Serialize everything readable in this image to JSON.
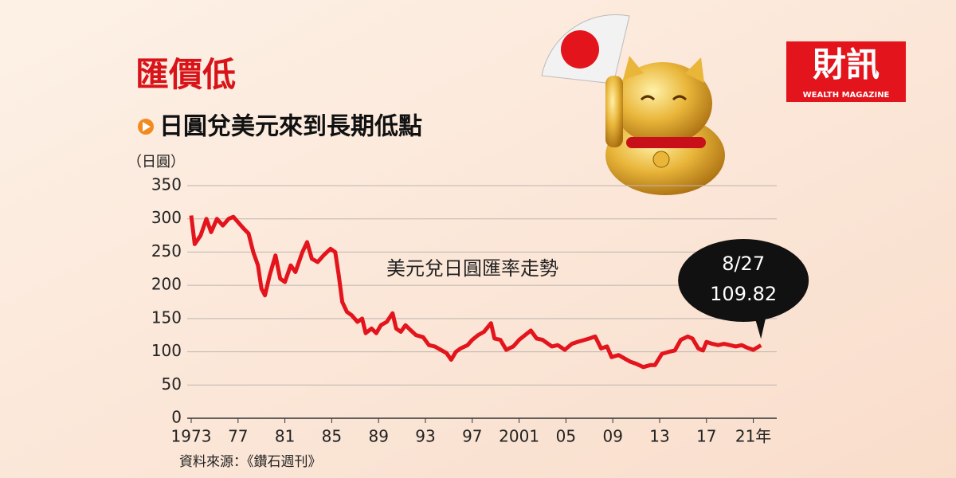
{
  "chart_data": {
    "type": "line",
    "title": "匯價低",
    "subtitle": "日圓兌美元來到長期低點",
    "y_label": "（日圓）",
    "series_label": "美元兌日圓匯率走勢",
    "source": "資料來源：《鑽石週刊》",
    "annotation": "8/27",
    "logo": {
      "text": "財訊",
      "subtitle": "WEALTH MAGAZINE"
    },
    "x": [
      1973.0,
      1973.3,
      1973.8,
      1974.3,
      1974.7,
      1975.2,
      1975.7,
      1976.2,
      1976.6,
      1977.0,
      1977.5,
      1977.9,
      1978.3,
      1978.7,
      1979.0,
      1979.3,
      1979.7,
      1980.2,
      1980.6,
      1981.0,
      1981.5,
      1981.9,
      1982.5,
      1982.9,
      1983.3,
      1983.8,
      1984.3,
      1984.9,
      1985.3,
      1985.6,
      1985.9,
      1986.3,
      1986.7,
      1987.2,
      1987.6,
      1987.9,
      1988.4,
      1988.8,
      1989.2,
      1989.7,
      1990.2,
      1990.5,
      1990.9,
      1991.3,
      1991.7,
      1992.2,
      1992.8,
      1993.3,
      1993.8,
      1994.3,
      1994.8,
      1995.2,
      1995.6,
      1996.0,
      1996.6,
      1997.0,
      1997.5,
      1998.0,
      1998.6,
      1998.9,
      1999.4,
      1999.9,
      2000.5,
      2001.0,
      2001.5,
      2002.0,
      2002.5,
      2003.0,
      2003.8,
      2004.3,
      2004.9,
      2005.5,
      2006.0,
      2006.6,
      2007.0,
      2007.5,
      2008.0,
      2008.5,
      2008.9,
      2009.5,
      2010.0,
      2010.5,
      2011.0,
      2011.6,
      2012.2,
      2012.6,
      2013.2,
      2013.8,
      2014.3,
      2014.8,
      2015.4,
      2015.8,
      2016.3,
      2016.7,
      2017.0,
      2017.5,
      2018.0,
      2018.5,
      2019.0,
      2019.5,
      2020.0,
      2020.5,
      2021.0,
      2021.65
    ],
    "series": [
      {
        "color": "#e3141c",
        "values": [
          305,
          262,
          275,
          300,
          280,
          300,
          290,
          300,
          303,
          295,
          285,
          278,
          250,
          230,
          195,
          185,
          215,
          245,
          210,
          205,
          230,
          220,
          250,
          265,
          240,
          235,
          245,
          255,
          250,
          215,
          175,
          160,
          155,
          145,
          150,
          128,
          135,
          128,
          140,
          145,
          158,
          135,
          130,
          140,
          133,
          125,
          122,
          110,
          108,
          103,
          98,
          88,
          100,
          105,
          110,
          118,
          125,
          130,
          143,
          120,
          118,
          103,
          108,
          118,
          125,
          132,
          120,
          118,
          108,
          110,
          103,
          112,
          115,
          118,
          120,
          123,
          105,
          108,
          92,
          95,
          90,
          85,
          82,
          77,
          80,
          80,
          97,
          100,
          102,
          118,
          123,
          120,
          105,
          102,
          115,
          112,
          110,
          112,
          110,
          108,
          110,
          106,
          103,
          109.82
        ]
      }
    ],
    "xlim": [
      1973,
      2023
    ],
    "ylim": [
      0,
      350
    ],
    "xticks": [
      1973,
      {
        "value": 1977,
        "label": "77"
      },
      {
        "value": 1981,
        "label": "81"
      },
      {
        "value": 1985,
        "label": "85"
      },
      {
        "value": 1989,
        "label": "89"
      },
      {
        "value": 1993,
        "label": "93"
      },
      {
        "value": 1997,
        "label": "97"
      },
      2001,
      {
        "value": 2005,
        "label": "05"
      },
      {
        "value": 2009,
        "label": "09"
      },
      {
        "value": 2013,
        "label": "13"
      },
      {
        "value": 2017,
        "label": "17"
      },
      {
        "value": 2021,
        "label": "21年"
      }
    ],
    "yticks": [
      0,
      50,
      100,
      150,
      200,
      250,
      300,
      350
    ],
    "grid": true
  }
}
